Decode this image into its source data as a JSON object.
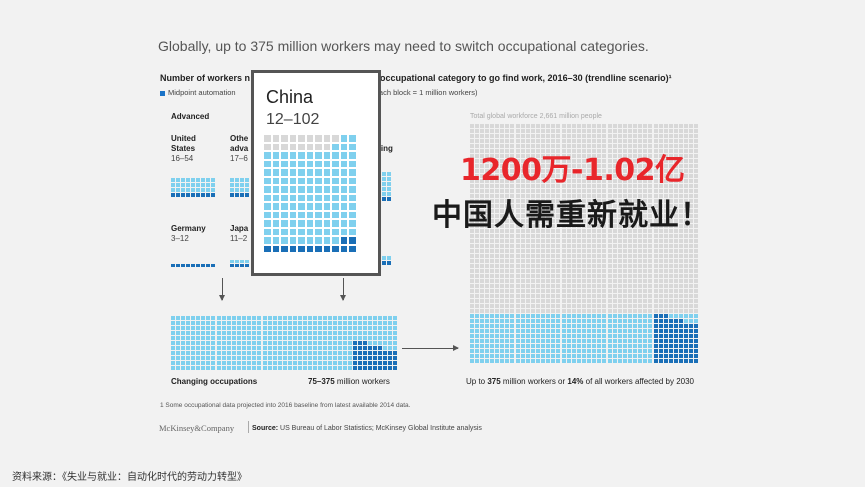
{
  "headline": "Globally, up to 375 million workers may need to switch occupational categories.",
  "subtitle_left": "Number of workers n",
  "subtitle_right": "occupational category to go find work, 2016–30 (trendline scenario)¹",
  "legend": {
    "midpoint": "Midpoint automation",
    "adoption": "doption (each block = 1 million workers)"
  },
  "section_advanced": "Advanced",
  "countries": {
    "us_name": "United States",
    "us_range": "16–54",
    "other_name": "Othe adva",
    "other_range": "17–6",
    "ping": "ping",
    "germany_name": "Germany",
    "germany_range": "3–12",
    "japan_name": "Japa",
    "japan_range": "11–2"
  },
  "china_box": {
    "title": "China",
    "range": "12–102"
  },
  "total_label": "Total global workforce 2,661 million people",
  "bottom_left": "Changing occupations",
  "bottom_mid_bold": "75–375",
  "bottom_mid_rest": " million workers",
  "bottom_right_a": "Up to ",
  "bottom_right_b": "375",
  "bottom_right_c": " million workers or ",
  "bottom_right_d": "14%",
  "bottom_right_e": " of all workers affected by 2030",
  "footnote": "1 Some occupational data projected into 2016 baseline from latest available 2014 data.",
  "brand": "McKinsey&Company",
  "source_label": "Source:",
  "source_text": " US Bureau of Labor Statistics; McKinsey Global Institute analysis",
  "overlay_red": "1200万-1.02亿",
  "overlay_dark": "中国人需重新就业！",
  "credit": "资料来源：《失业与就业：自动化时代的劳动力转型》",
  "colors": {
    "light_block": "#7fd0ee",
    "dark_block": "#1a6fb7",
    "gray_block": "#d8d8d8",
    "red": "#e8262b"
  }
}
